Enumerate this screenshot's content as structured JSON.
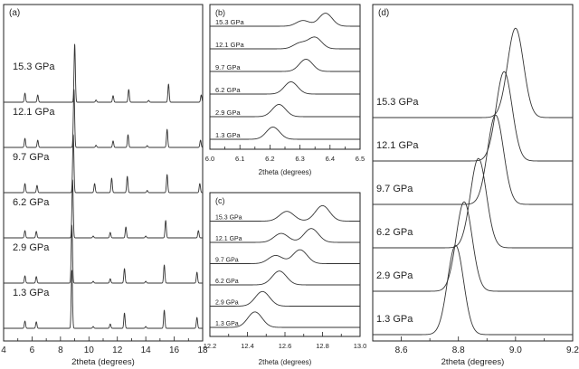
{
  "chart_data": [
    {
      "type": "line",
      "panel": "(a)",
      "xlabel": "2theta (degrees)",
      "xlim": [
        4,
        18
      ],
      "xticks": [
        4,
        6,
        8,
        10,
        12,
        14,
        16,
        18
      ],
      "series": [
        {
          "name": "15.3 GPa",
          "peaks": [
            [
              5.5,
              0.25
            ],
            [
              6.4,
              0.2
            ],
            [
              9.0,
              1.6
            ],
            [
              10.5,
              0.06
            ],
            [
              11.7,
              0.18
            ],
            [
              12.8,
              0.35
            ],
            [
              14.2,
              0.05
            ],
            [
              15.6,
              0.5
            ],
            [
              17.9,
              0.2
            ]
          ]
        },
        {
          "name": "12.1 GPa",
          "peaks": [
            [
              5.5,
              0.25
            ],
            [
              6.4,
              0.2
            ],
            [
              8.95,
              1.6
            ],
            [
              10.5,
              0.06
            ],
            [
              11.7,
              0.18
            ],
            [
              12.75,
              0.35
            ],
            [
              14.1,
              0.05
            ],
            [
              15.5,
              0.5
            ],
            [
              17.85,
              0.2
            ]
          ]
        },
        {
          "name": "9.7 GPa",
          "peaks": [
            [
              5.5,
              0.25
            ],
            [
              6.35,
              0.2
            ],
            [
              8.9,
              1.6
            ],
            [
              10.4,
              0.25
            ],
            [
              11.6,
              0.4
            ],
            [
              12.7,
              0.45
            ],
            [
              14.1,
              0.06
            ],
            [
              15.5,
              0.5
            ],
            [
              17.8,
              0.25
            ]
          ]
        },
        {
          "name": "6.2 GPa",
          "peaks": [
            [
              5.5,
              0.2
            ],
            [
              6.3,
              0.18
            ],
            [
              8.85,
              1.6
            ],
            [
              10.3,
              0.05
            ],
            [
              11.5,
              0.15
            ],
            [
              12.6,
              0.3
            ],
            [
              14.0,
              0.05
            ],
            [
              15.4,
              0.48
            ],
            [
              17.7,
              0.2
            ]
          ]
        },
        {
          "name": "2.9 GPa",
          "peaks": [
            [
              5.5,
              0.2
            ],
            [
              6.3,
              0.18
            ],
            [
              8.8,
              1.6
            ],
            [
              10.3,
              0.05
            ],
            [
              11.5,
              0.12
            ],
            [
              12.5,
              0.4
            ],
            [
              14.0,
              0.05
            ],
            [
              15.3,
              0.5
            ],
            [
              17.6,
              0.3
            ]
          ]
        },
        {
          "name": "1.3 GPa",
          "peaks": [
            [
              5.5,
              0.2
            ],
            [
              6.3,
              0.18
            ],
            [
              8.8,
              1.6
            ],
            [
              10.3,
              0.05
            ],
            [
              11.5,
              0.12
            ],
            [
              12.5,
              0.42
            ],
            [
              14.0,
              0.05
            ],
            [
              15.3,
              0.5
            ],
            [
              17.6,
              0.3
            ]
          ]
        }
      ]
    },
    {
      "type": "line",
      "panel": "(b)",
      "xlabel": "2theta (degrees)",
      "xlim": [
        6.0,
        6.5
      ],
      "xticks": [
        6.0,
        6.1,
        6.2,
        6.3,
        6.4,
        6.5
      ],
      "series": [
        {
          "name": "15.3 GPa",
          "peaks": [
            [
              6.31,
              0.35
            ],
            [
              6.385,
              0.8
            ]
          ]
        },
        {
          "name": "12.1 GPa",
          "peaks": [
            [
              6.3,
              0.35
            ],
            [
              6.35,
              0.7
            ]
          ]
        },
        {
          "name": "9.7 GPa",
          "peaks": [
            [
              6.32,
              0.75
            ]
          ]
        },
        {
          "name": "6.2 GPa",
          "peaks": [
            [
              6.27,
              0.75
            ]
          ]
        },
        {
          "name": "2.9 GPa",
          "peaks": [
            [
              6.23,
              0.75
            ]
          ]
        },
        {
          "name": "1.3 GPa",
          "peaks": [
            [
              6.21,
              0.75
            ]
          ]
        }
      ]
    },
    {
      "type": "line",
      "panel": "(c)",
      "xlabel": "2theta (degrees)",
      "xlim": [
        12.2,
        13.0
      ],
      "xticks": [
        12.2,
        12.4,
        12.6,
        12.8,
        13.0
      ],
      "series": [
        {
          "name": "15.3 GPa",
          "peaks": [
            [
              12.61,
              0.6
            ],
            [
              12.8,
              0.95
            ]
          ]
        },
        {
          "name": "12.1 GPa",
          "peaks": [
            [
              12.58,
              0.55
            ],
            [
              12.74,
              0.85
            ]
          ]
        },
        {
          "name": "9.7 GPa",
          "peaks": [
            [
              12.55,
              0.5
            ],
            [
              12.68,
              0.85
            ]
          ]
        },
        {
          "name": "6.2 GPa",
          "peaks": [
            [
              12.57,
              0.85
            ]
          ]
        },
        {
          "name": "2.9 GPa",
          "peaks": [
            [
              12.48,
              0.9
            ]
          ]
        },
        {
          "name": "1.3 GPa",
          "peaks": [
            [
              12.44,
              0.95
            ]
          ]
        }
      ]
    },
    {
      "type": "line",
      "panel": "(d)",
      "xlabel": "2theta (degrees)",
      "xlim": [
        8.5,
        9.2
      ],
      "xticks": [
        8.6,
        8.8,
        9.0,
        9.2
      ],
      "series": [
        {
          "name": "15.3 GPa",
          "peaks": [
            [
              9.0,
              1.9
            ]
          ]
        },
        {
          "name": "12.1 GPa",
          "peaks": [
            [
              8.96,
              1.9
            ]
          ]
        },
        {
          "name": "9.7 GPa",
          "peaks": [
            [
              8.93,
              1.9
            ]
          ]
        },
        {
          "name": "6.2 GPa",
          "peaks": [
            [
              8.87,
              1.9
            ]
          ]
        },
        {
          "name": "2.9 GPa",
          "peaks": [
            [
              8.82,
              1.9
            ]
          ]
        },
        {
          "name": "1.3 GPa",
          "peaks": [
            [
              8.79,
              1.9
            ]
          ]
        }
      ]
    }
  ]
}
